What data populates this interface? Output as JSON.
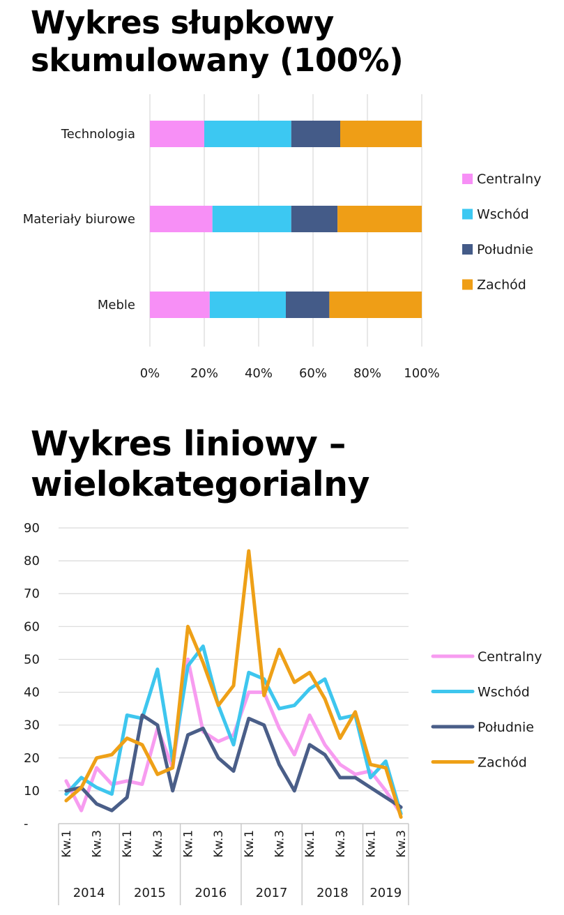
{
  "titles": {
    "bar_line1": "Wykres słupkowy",
    "bar_line2": "skumulowany (100%)",
    "line_line1": "Wykres liniowy –",
    "line_line2": "wielokategorialny"
  },
  "colors": {
    "Centralny_bar": "#f78ff6",
    "Wschód_bar": "#3cc8f2",
    "Południe_bar": "#445b88",
    "Zachód_bar": "#ef9e16",
    "Centralny_line": "#f79cf0",
    "Wschód_line": "#3ec6ee",
    "Południe_line": "#4a5e88",
    "Zachód_line": "#eea017",
    "grid": "#d9d9d9"
  },
  "chart_data": [
    {
      "type": "bar",
      "orientation": "horizontal",
      "stacking": "100%",
      "categories": [
        "Technologia",
        "Materiały biurowe",
        "Meble"
      ],
      "series": [
        {
          "name": "Centralny",
          "values": [
            20,
            23,
            22
          ]
        },
        {
          "name": "Wschód",
          "values": [
            32,
            29,
            28
          ]
        },
        {
          "name": "Południe",
          "values": [
            18,
            17,
            16
          ]
        },
        {
          "name": "Zachód",
          "values": [
            30,
            31,
            34
          ]
        }
      ],
      "xticks": [
        "0%",
        "20%",
        "40%",
        "60%",
        "80%",
        "100%"
      ],
      "xlim": [
        0,
        100
      ],
      "grid": "vertical",
      "legend": "right"
    },
    {
      "type": "line",
      "x": [
        "2014 Kw.1",
        "2014 Kw.2",
        "2014 Kw.3",
        "2014 Kw.4",
        "2015 Kw.1",
        "2015 Kw.2",
        "2015 Kw.3",
        "2015 Kw.4",
        "2016 Kw.1",
        "2016 Kw.2",
        "2016 Kw.3",
        "2016 Kw.4",
        "2017 Kw.1",
        "2017 Kw.2",
        "2017 Kw.3",
        "2017 Kw.4",
        "2018 Kw.1",
        "2018 Kw.2",
        "2018 Kw.3",
        "2018 Kw.4",
        "2019 Kw.1",
        "2019 Kw.2",
        "2019 Kw.3"
      ],
      "x_tick_labels": [
        "Kw.1",
        "Kw.3",
        "Kw.1",
        "Kw.3",
        "Kw.1",
        "Kw.3",
        "Kw.1",
        "Kw.3",
        "Kw.1",
        "Kw.3",
        "Kw.1",
        "Kw.3"
      ],
      "x_tick_indices": [
        0,
        2,
        4,
        6,
        8,
        10,
        12,
        14,
        16,
        18,
        20,
        22
      ],
      "groups": [
        {
          "label": "2014",
          "start": 0,
          "end": 3
        },
        {
          "label": "2015",
          "start": 4,
          "end": 7
        },
        {
          "label": "2016",
          "start": 8,
          "end": 11
        },
        {
          "label": "2017",
          "start": 12,
          "end": 15
        },
        {
          "label": "2018",
          "start": 16,
          "end": 19
        },
        {
          "label": "2019",
          "start": 20,
          "end": 22
        }
      ],
      "series": [
        {
          "name": "Centralny",
          "values": [
            13,
            4,
            17,
            12,
            13,
            12,
            29,
            17,
            50,
            28,
            25,
            27,
            40,
            40,
            29,
            21,
            33,
            24,
            18,
            15,
            16,
            10,
            3
          ]
        },
        {
          "name": "Wschód",
          "values": [
            9,
            14,
            11,
            9,
            33,
            32,
            47,
            19,
            48,
            54,
            36,
            24,
            46,
            44,
            35,
            36,
            41,
            44,
            32,
            33,
            14,
            19,
            3
          ]
        },
        {
          "name": "Południe",
          "values": [
            10,
            11,
            6,
            4,
            8,
            33,
            30,
            10,
            27,
            29,
            20,
            16,
            32,
            30,
            18,
            10,
            24,
            21,
            14,
            14,
            11,
            8,
            5
          ]
        },
        {
          "name": "Zachód",
          "values": [
            7,
            11,
            20,
            21,
            26,
            24,
            15,
            17,
            60,
            49,
            36,
            42,
            83,
            39,
            53,
            43,
            46,
            38,
            26,
            34,
            18,
            17,
            2
          ]
        }
      ],
      "yticks": [
        "-",
        "10",
        "20",
        "30",
        "40",
        "50",
        "60",
        "70",
        "80",
        "90"
      ],
      "ylim": [
        0,
        90
      ],
      "grid": "horizontal",
      "legend": "right"
    }
  ]
}
